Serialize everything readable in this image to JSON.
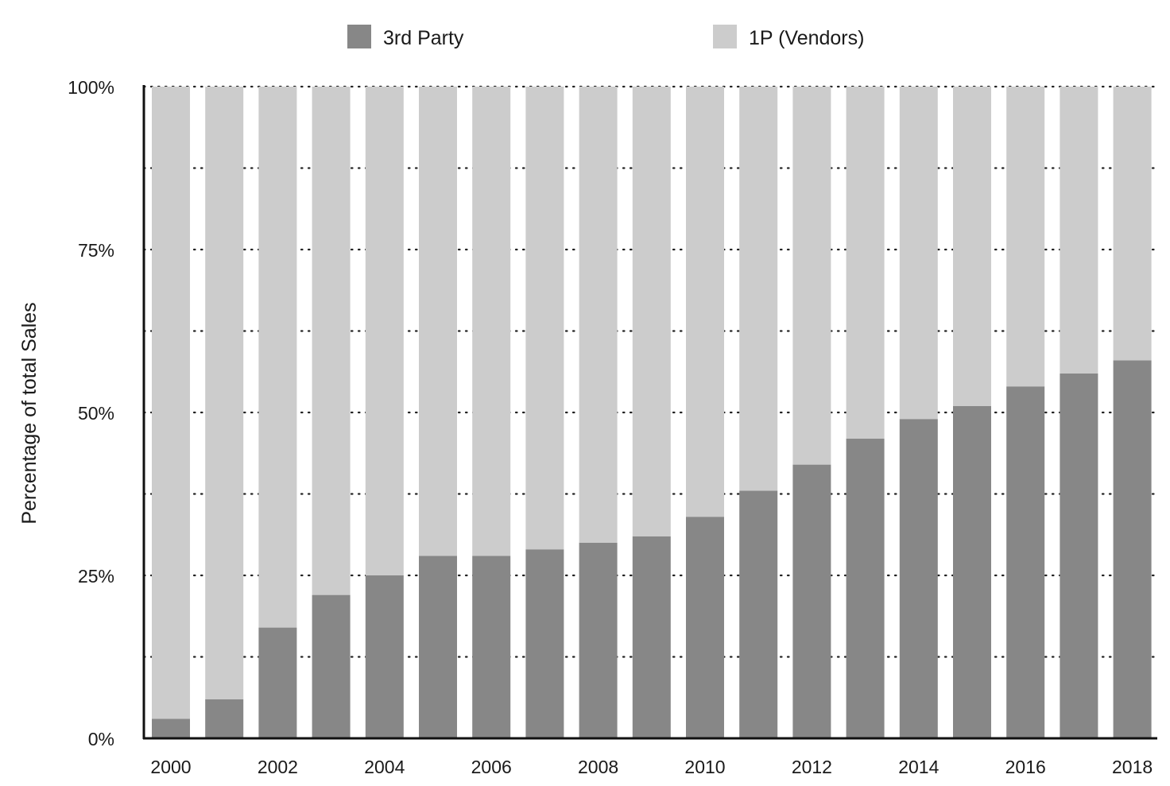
{
  "chart_data": {
    "type": "bar",
    "stacked": true,
    "title": "",
    "xlabel": "",
    "ylabel": "Percentage of total Sales",
    "ylim": [
      0,
      100
    ],
    "y_ticks": [
      "0%",
      "25%",
      "50%",
      "75%",
      "100%"
    ],
    "y_tick_values": [
      0,
      25,
      50,
      75,
      100
    ],
    "grid": "dotted horizontal",
    "legend_position": "top",
    "categories": [
      "2000",
      "2001",
      "2002",
      "2003",
      "2004",
      "2005",
      "2006",
      "2007",
      "2008",
      "2009",
      "2010",
      "2011",
      "2012",
      "2013",
      "2014",
      "2015",
      "2016",
      "2017",
      "2018"
    ],
    "x_tick_labels": [
      "2000",
      "2002",
      "2004",
      "2006",
      "2008",
      "2010",
      "2012",
      "2014",
      "2016",
      "2018"
    ],
    "series": [
      {
        "name": "3rd Party",
        "color": "#878787",
        "values": [
          3,
          6,
          17,
          22,
          25,
          28,
          28,
          29,
          30,
          31,
          34,
          38,
          42,
          46,
          49,
          51,
          54,
          56,
          58
        ]
      },
      {
        "name": "1P (Vendors)",
        "color": "#cccccc",
        "values": [
          97,
          94,
          83,
          78,
          75,
          72,
          72,
          71,
          70,
          69,
          66,
          62,
          58,
          54,
          51,
          49,
          46,
          44,
          42
        ]
      }
    ]
  }
}
